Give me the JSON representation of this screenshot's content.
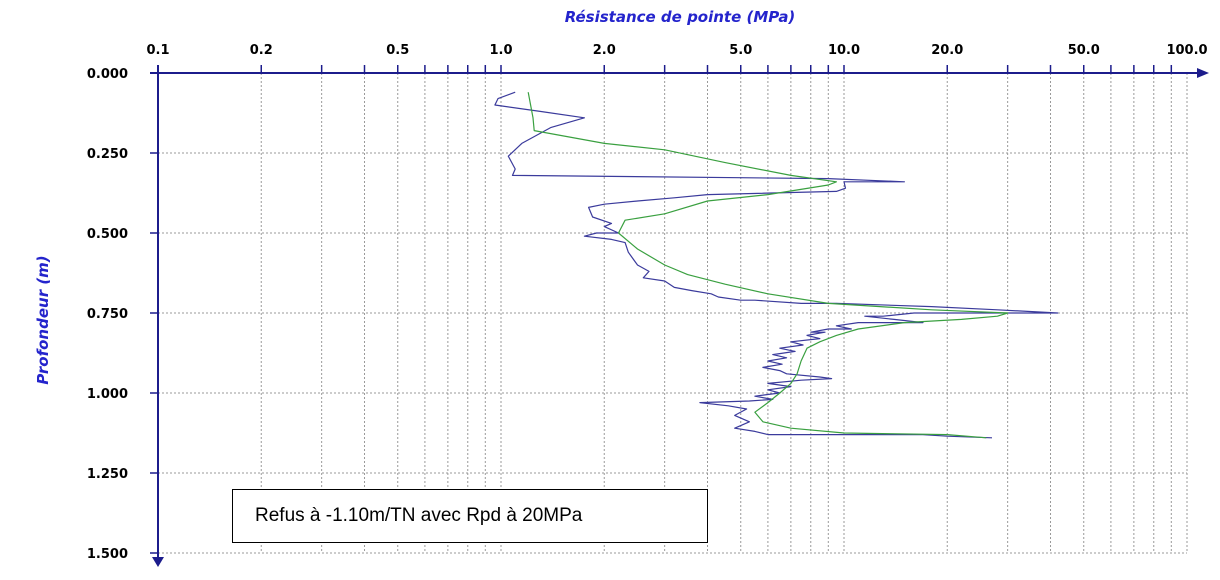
{
  "chart_data": {
    "type": "line",
    "title": "Résistance de pointe (MPa)",
    "xlabel": "Résistance de pointe (MPa)",
    "ylabel": "Profondeur (m)",
    "x_scale": "log",
    "xlim": [
      0.1,
      100.0
    ],
    "ylim": [
      0.0,
      1.5
    ],
    "y_inverted": true,
    "grid": true,
    "x_tick_labels": [
      "0.1",
      "0.2",
      "0.5",
      "1.0",
      "2.0",
      "5.0",
      "10.0",
      "20.0",
      "50.0",
      "100.0"
    ],
    "x_tick_values": [
      0.1,
      0.2,
      0.5,
      1.0,
      2.0,
      5.0,
      10.0,
      20.0,
      50.0,
      100.0
    ],
    "y_tick_labels": [
      "0.000",
      "0.250",
      "0.500",
      "0.750",
      "1.000",
      "1.250",
      "1.500"
    ],
    "y_tick_values": [
      0.0,
      0.25,
      0.5,
      0.75,
      1.0,
      1.25,
      1.5
    ],
    "series": [
      {
        "color": "#3b3b9c",
        "points": [
          [
            1.1,
            0.06
          ],
          [
            0.98,
            0.08
          ],
          [
            0.96,
            0.1
          ],
          [
            1.3,
            0.12
          ],
          [
            1.75,
            0.14
          ],
          [
            1.4,
            0.17
          ],
          [
            1.15,
            0.22
          ],
          [
            1.05,
            0.26
          ],
          [
            1.1,
            0.3
          ],
          [
            1.08,
            0.32
          ],
          [
            9.0,
            0.33
          ],
          [
            15.0,
            0.34
          ],
          [
            10.0,
            0.34
          ],
          [
            10.1,
            0.36
          ],
          [
            9.5,
            0.37
          ],
          [
            4.0,
            0.38
          ],
          [
            3.2,
            0.39
          ],
          [
            2.5,
            0.4
          ],
          [
            2.0,
            0.41
          ],
          [
            1.8,
            0.42
          ],
          [
            1.85,
            0.45
          ],
          [
            2.1,
            0.47
          ],
          [
            2.0,
            0.48
          ],
          [
            2.2,
            0.5
          ],
          [
            1.9,
            0.5
          ],
          [
            1.75,
            0.51
          ],
          [
            2.1,
            0.52
          ],
          [
            2.3,
            0.53
          ],
          [
            2.35,
            0.56
          ],
          [
            2.5,
            0.6
          ],
          [
            2.7,
            0.62
          ],
          [
            2.6,
            0.64
          ],
          [
            3.0,
            0.65
          ],
          [
            3.2,
            0.67
          ],
          [
            3.6,
            0.68
          ],
          [
            4.1,
            0.69
          ],
          [
            4.3,
            0.7
          ],
          [
            5.0,
            0.71
          ],
          [
            5.5,
            0.71
          ],
          [
            7.5,
            0.72
          ],
          [
            9.5,
            0.72
          ],
          [
            18.0,
            0.73
          ],
          [
            28.0,
            0.74
          ],
          [
            42.0,
            0.75
          ],
          [
            16.0,
            0.75
          ],
          [
            13.0,
            0.76
          ],
          [
            11.5,
            0.76
          ],
          [
            14.0,
            0.77
          ],
          [
            17.0,
            0.78
          ],
          [
            11.0,
            0.78
          ],
          [
            9.5,
            0.79
          ],
          [
            10.5,
            0.8
          ],
          [
            9.0,
            0.8
          ],
          [
            8.0,
            0.81
          ],
          [
            8.8,
            0.81
          ],
          [
            7.8,
            0.82
          ],
          [
            8.5,
            0.83
          ],
          [
            7.0,
            0.84
          ],
          [
            7.6,
            0.85
          ],
          [
            6.5,
            0.86
          ],
          [
            7.2,
            0.87
          ],
          [
            6.2,
            0.88
          ],
          [
            6.8,
            0.89
          ],
          [
            6.0,
            0.9
          ],
          [
            6.6,
            0.91
          ],
          [
            5.8,
            0.92
          ],
          [
            6.5,
            0.93
          ],
          [
            6.8,
            0.94
          ],
          [
            8.5,
            0.95
          ],
          [
            9.2,
            0.955
          ],
          [
            7.5,
            0.96
          ],
          [
            6.0,
            0.97
          ],
          [
            7.0,
            0.98
          ],
          [
            6.0,
            0.99
          ],
          [
            6.5,
            1.0
          ],
          [
            5.5,
            1.01
          ],
          [
            6.2,
            1.02
          ],
          [
            5.3,
            1.025
          ],
          [
            3.8,
            1.03
          ],
          [
            4.6,
            1.04
          ],
          [
            5.2,
            1.05
          ],
          [
            4.8,
            1.07
          ],
          [
            5.3,
            1.09
          ],
          [
            4.8,
            1.11
          ],
          [
            5.5,
            1.12
          ],
          [
            6.0,
            1.13
          ],
          [
            10.0,
            1.13
          ],
          [
            17.0,
            1.13
          ],
          [
            20.0,
            1.135
          ],
          [
            27.0,
            1.14
          ]
        ]
      },
      {
        "color": "#3aa040",
        "points": [
          [
            1.2,
            0.06
          ],
          [
            1.22,
            0.1
          ],
          [
            1.24,
            0.14
          ],
          [
            1.25,
            0.18
          ],
          [
            2.0,
            0.22
          ],
          [
            3.0,
            0.24
          ],
          [
            4.5,
            0.28
          ],
          [
            7.0,
            0.32
          ],
          [
            9.5,
            0.34
          ],
          [
            9.0,
            0.35
          ],
          [
            6.0,
            0.38
          ],
          [
            4.0,
            0.4
          ],
          [
            3.0,
            0.44
          ],
          [
            2.3,
            0.46
          ],
          [
            2.2,
            0.5
          ],
          [
            2.5,
            0.55
          ],
          [
            3.0,
            0.6
          ],
          [
            3.5,
            0.63
          ],
          [
            4.5,
            0.66
          ],
          [
            6.0,
            0.69
          ],
          [
            9.0,
            0.72
          ],
          [
            18.0,
            0.74
          ],
          [
            30.0,
            0.75
          ],
          [
            28.0,
            0.76
          ],
          [
            22.0,
            0.77
          ],
          [
            15.0,
            0.78
          ],
          [
            11.0,
            0.8
          ],
          [
            9.5,
            0.82
          ],
          [
            8.5,
            0.84
          ],
          [
            7.8,
            0.86
          ],
          [
            7.5,
            0.9
          ],
          [
            7.3,
            0.94
          ],
          [
            7.0,
            0.97
          ],
          [
            6.5,
            1.0
          ],
          [
            6.0,
            1.03
          ],
          [
            5.5,
            1.06
          ],
          [
            5.8,
            1.09
          ],
          [
            7.0,
            1.11
          ],
          [
            10.0,
            1.125
          ],
          [
            20.0,
            1.13
          ],
          [
            26.0,
            1.14
          ]
        ]
      }
    ]
  },
  "annotation": {
    "text": "Refus à -1.10m/TN avec Rpd à 20MPa"
  }
}
